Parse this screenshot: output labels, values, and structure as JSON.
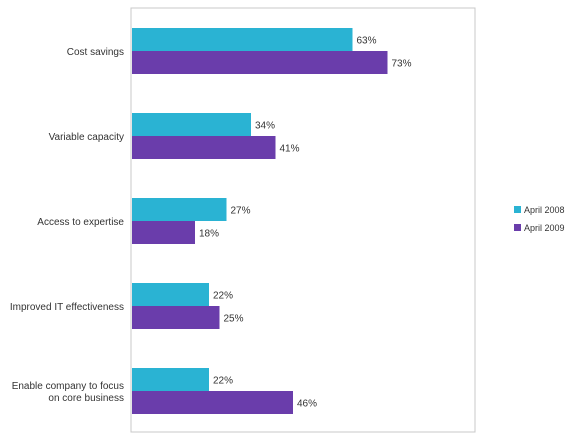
{
  "chart_data": {
    "type": "bar",
    "orientation": "horizontal",
    "categories": [
      "Cost savings",
      "Variable capacity",
      "Access to expertise",
      "Improved IT effectiveness",
      "Enable company to focus on core business"
    ],
    "category_lines": [
      [
        "Cost savings"
      ],
      [
        "Variable capacity"
      ],
      [
        "Access to expertise"
      ],
      [
        "Improved IT effectiveness"
      ],
      [
        "Enable company to focus",
        "on core business"
      ]
    ],
    "series": [
      {
        "name": "April 2008",
        "color": "#2ab3d3",
        "values": [
          63,
          34,
          27,
          22,
          22
        ],
        "labels": [
          "63%",
          "34%",
          "27%",
          "22%",
          "22%"
        ]
      },
      {
        "name": "April 2009",
        "color": "#6a3dab",
        "values": [
          73,
          41,
          18,
          25,
          46
        ],
        "labels": [
          "73%",
          "41%",
          "18%",
          "25%",
          "46%"
        ]
      }
    ],
    "xlim": [
      0,
      100
    ],
    "grid": false,
    "legend_position": "right"
  }
}
